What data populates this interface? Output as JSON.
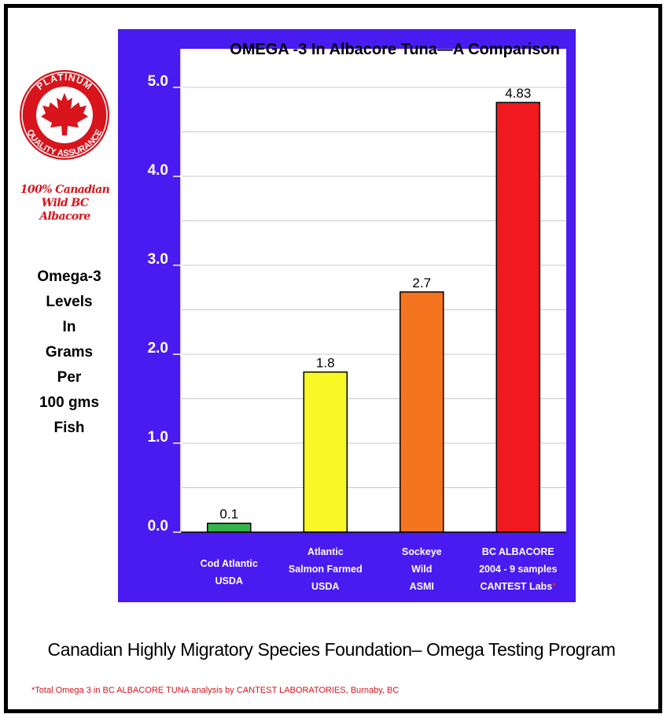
{
  "logo": {
    "ring_top": "PLATINUM",
    "ring_bottom": "QUALITY ASSURANCE",
    "caption_line1": "100% Canadian",
    "caption_line2": "Wild BC Albacore",
    "icon": "maple-leaf-icon",
    "color": "#d8141c"
  },
  "y_axis_label": [
    "Omega-3",
    "Levels",
    "In",
    "Grams",
    "Per",
    "100 gms",
    "Fish"
  ],
  "chart_data": {
    "type": "bar",
    "title": "OMEGA -3 In Albacore Tuna—A Comparison",
    "ylim": [
      0,
      5.5
    ],
    "yticks": [
      {
        "value": 0,
        "label": "0.0"
      },
      {
        "value": 1,
        "label": "1.0"
      },
      {
        "value": 2,
        "label": "2.0"
      },
      {
        "value": 3,
        "label": "3.0"
      },
      {
        "value": 4,
        "label": "4.0"
      },
      {
        "value": 5,
        "label": "5.0"
      }
    ],
    "grid": true,
    "background": "#4a1bf0",
    "plot_background": "#ffffff",
    "bars": [
      {
        "category": [
          "Cod Atlantic",
          "USDA"
        ],
        "value": 0.1,
        "label": "0.1",
        "color": "#34b449",
        "highlight_line": -1,
        "marker": ""
      },
      {
        "category": [
          "Atlantic",
          "Salmon Farmed",
          "USDA"
        ],
        "value": 1.8,
        "label": "1.8",
        "color": "#f8f826",
        "highlight_line": -1,
        "marker": ""
      },
      {
        "category": [
          "Sockeye",
          "Wild",
          "ASMI"
        ],
        "value": 2.7,
        "label": "2.7",
        "color": "#f47420",
        "highlight_line": -1,
        "marker": ""
      },
      {
        "category": [
          "BC ALBACORE",
          "2004 - 9 samples",
          "CANTEST Labs"
        ],
        "value": 4.83,
        "label": "4.83",
        "color": "#f0191e",
        "highlight_line": 0,
        "marker": "*"
      }
    ]
  },
  "footer": {
    "title": "Canadian Highly Migratory Species Foundation– Omega Testing Program",
    "note": "*Total Omega 3 in BC ALBACORE TUNA  analysis by CANTEST LABORATORIES, Burnaby, BC"
  }
}
